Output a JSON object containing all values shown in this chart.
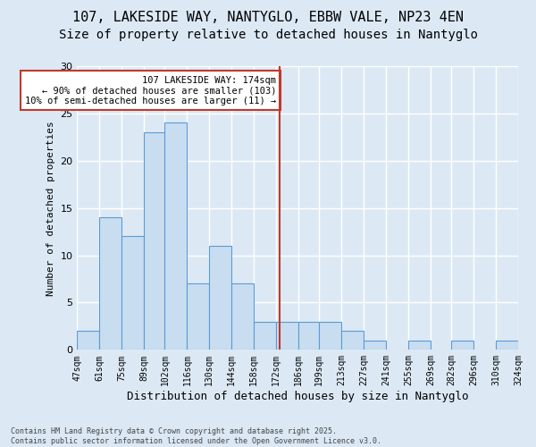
{
  "title1": "107, LAKESIDE WAY, NANTYGLO, EBBW VALE, NP23 4EN",
  "title2": "Size of property relative to detached houses in Nantyglo",
  "xlabel": "Distribution of detached houses by size in Nantyglo",
  "ylabel": "Number of detached properties",
  "footnote": "Contains HM Land Registry data © Crown copyright and database right 2025.\nContains public sector information licensed under the Open Government Licence v3.0.",
  "bin_edges": [
    47,
    61,
    75,
    89,
    102,
    116,
    130,
    144,
    158,
    172,
    186,
    199,
    213,
    227,
    241,
    255,
    269,
    282,
    296,
    310,
    324
  ],
  "bar_values": [
    2,
    14,
    12,
    23,
    24,
    7,
    11,
    7,
    3,
    3,
    3,
    3,
    2,
    1,
    0,
    1,
    0,
    1,
    0,
    1
  ],
  "bar_color": "#c9ddf0",
  "bar_edge_color": "#5a9bd5",
  "vline_x": 174,
  "vline_color": "#c0392b",
  "annotation_box_text": "107 LAKESIDE WAY: 174sqm\n← 90% of detached houses are smaller (103)\n10% of semi-detached houses are larger (11) →",
  "annotation_box_color": "#c0392b",
  "ylim": [
    0,
    30
  ],
  "yticks": [
    0,
    5,
    10,
    15,
    20,
    25,
    30
  ],
  "bg_color": "#dce9f5",
  "plot_bg_color": "#dce9f5",
  "title1_fontsize": 11,
  "title2_fontsize": 10,
  "extra_tick": 324
}
